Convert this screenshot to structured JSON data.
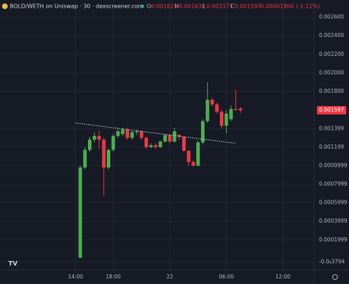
{
  "header": {
    "title": "BOLD/WETH on Uniswap · 30 · dexscreener.com",
    "open_label": "O",
    "open": 0.001615,
    "high_label": "H",
    "high": 0.001632,
    "low_label": "L",
    "low": 0.001571,
    "close_label": "C",
    "close": 0.001597,
    "change": "-0.00001800 (-1.11%)"
  },
  "chart_data": {
    "type": "candlestick",
    "x": [
      "14:30",
      "15:00",
      "15:30",
      "16:00",
      "16:30",
      "17:00",
      "17:30",
      "18:00",
      "18:30",
      "19:00",
      "19:30",
      "20:00",
      "20:30",
      "21:00",
      "21:30",
      "22:00",
      "22:30",
      "23:00",
      "23:30",
      "00:00",
      "00:30",
      "01:00",
      "01:30",
      "02:00",
      "02:30",
      "03:00",
      "03:30",
      "04:00",
      "04:30",
      "05:00",
      "05:30",
      "06:00",
      "06:30",
      "07:00",
      "07:30"
    ],
    "open": [
      1e-05,
      0.00098,
      0.00117,
      0.00128,
      0.00132,
      0.00128,
      0.00098,
      0.00117,
      0.00132,
      0.00134,
      0.00139,
      0.0013,
      0.00136,
      0.00137,
      0.0013,
      0.0012,
      0.00122,
      0.0012,
      0.00126,
      0.00133,
      0.00126,
      0.00133,
      0.00131,
      0.00116,
      0.00104,
      0.001,
      0.00125,
      0.00148,
      0.00171,
      0.00166,
      0.00158,
      0.00143,
      0.0015,
      0.00161,
      0.001615
    ],
    "high": [
      0.001,
      0.0012,
      0.00131,
      0.00136,
      0.00138,
      0.0013,
      0.00118,
      0.00134,
      0.0014,
      0.00141,
      0.00141,
      0.00138,
      0.00139,
      0.00138,
      0.00131,
      0.00124,
      0.00124,
      0.00127,
      0.00134,
      0.00134,
      0.00141,
      0.00134,
      0.00132,
      0.00117,
      0.00106,
      0.00127,
      0.0015,
      0.0019,
      0.00173,
      0.00168,
      0.0016,
      0.0016,
      0.00165,
      0.00182,
      0.001632
    ],
    "low": [
      0.0,
      0.00096,
      0.00115,
      0.00125,
      0.00118,
      0.00068,
      0.00096,
      0.00115,
      0.0013,
      0.00132,
      0.00128,
      0.00128,
      0.00133,
      0.00128,
      0.00118,
      0.00119,
      0.00118,
      0.00119,
      0.00125,
      0.00124,
      0.00125,
      0.00128,
      0.00115,
      0.001,
      0.00099,
      0.00099,
      0.00123,
      0.00146,
      0.00164,
      0.00156,
      0.0014,
      0.00135,
      0.00148,
      0.00159,
      0.001571
    ],
    "close": [
      0.00098,
      0.00117,
      0.00128,
      0.00132,
      0.00128,
      0.00098,
      0.00117,
      0.00132,
      0.00137,
      0.00139,
      0.0013,
      0.00136,
      0.00137,
      0.0013,
      0.0012,
      0.00122,
      0.0012,
      0.00126,
      0.00133,
      0.00126,
      0.00137,
      0.00131,
      0.00116,
      0.00104,
      0.001,
      0.00125,
      0.00148,
      0.00171,
      0.00166,
      0.00158,
      0.00143,
      0.00156,
      0.00161,
      0.0016,
      0.001597
    ],
    "up_color": "#4caf50",
    "down_color": "#f23645",
    "trendline": {
      "x": [
        "14:00",
        "07:00"
      ],
      "values": [
        0.00146,
        0.00124
      ]
    },
    "ylim": [
      -0.000125,
      0.002785
    ],
    "yticks": [
      {
        "value": 0.0026,
        "label": "0.002600"
      },
      {
        "value": 0.0024,
        "label": "0.002400"
      },
      {
        "value": 0.0022,
        "label": "0.002200"
      },
      {
        "value": 0.002,
        "label": "0.002000"
      },
      {
        "value": 0.0018,
        "label": "0.001800"
      },
      {
        "value": 0.001399,
        "label": "0.001399"
      },
      {
        "value": 0.001199,
        "label": "0.001199"
      },
      {
        "value": 0.0009999,
        "label": "0.0009999"
      },
      {
        "value": 0.0007999,
        "label": "0.0007999"
      },
      {
        "value": 0.0005999,
        "label": "0.0005999"
      },
      {
        "value": 0.0003999,
        "label": "0.0003999"
      },
      {
        "value": 0.0001999,
        "label": "0.0001999"
      },
      {
        "value": -3.794e-05,
        "label": "-0.0₄3794"
      }
    ],
    "xticks": [
      "14:00",
      "18:00",
      {
        "value": "00:00",
        "label": "22"
      },
      "06:00",
      "12:00"
    ],
    "grid": true
  }
}
